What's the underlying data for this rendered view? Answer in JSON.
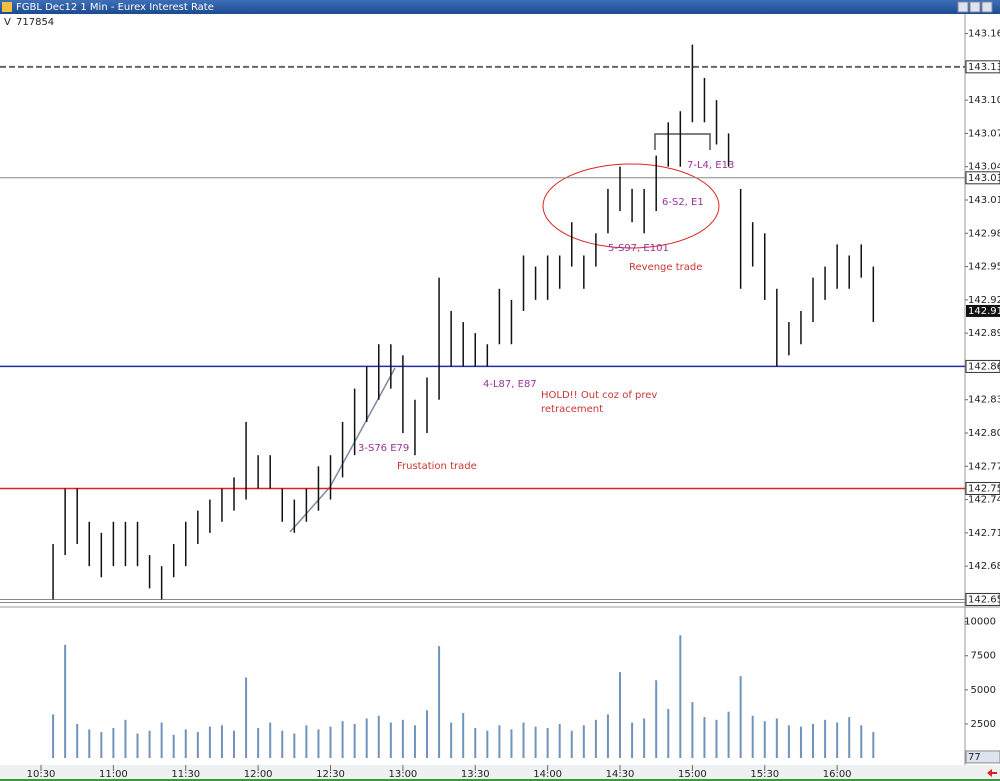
{
  "chart_data": {
    "type": "ohlc",
    "title": "FGBL Dec12 1 Min - Eurex Interest Rate",
    "volume_label": "V",
    "volume_total": 717854,
    "x": [
      "10:35",
      "10:40",
      "10:45",
      "10:50",
      "10:55",
      "11:00",
      "11:05",
      "11:10",
      "11:15",
      "11:20",
      "11:25",
      "11:30",
      "11:35",
      "11:40",
      "11:45",
      "11:50",
      "11:55",
      "12:00",
      "12:05",
      "12:10",
      "12:15",
      "12:20",
      "12:25",
      "12:30",
      "12:35",
      "12:40",
      "12:45",
      "12:50",
      "12:55",
      "13:00",
      "13:05",
      "13:10",
      "13:15",
      "13:20",
      "13:25",
      "13:30",
      "13:35",
      "13:40",
      "13:45",
      "13:50",
      "13:55",
      "14:00",
      "14:05",
      "14:10",
      "14:15",
      "14:20",
      "14:25",
      "14:30",
      "14:35",
      "14:40",
      "14:45",
      "14:50",
      "14:55",
      "15:00",
      "15:05",
      "15:10",
      "15:15",
      "15:20",
      "15:25",
      "15:30",
      "15:35",
      "15:40",
      "15:45",
      "15:50",
      "15:55",
      "16:00",
      "16:05",
      "16:10",
      "16:15"
    ],
    "high": [
      142.7,
      142.75,
      142.75,
      142.72,
      142.71,
      142.72,
      142.72,
      142.72,
      142.69,
      142.68,
      142.7,
      142.72,
      142.73,
      142.74,
      142.75,
      142.76,
      142.81,
      142.78,
      142.78,
      142.75,
      142.74,
      142.75,
      142.77,
      142.78,
      142.81,
      142.84,
      142.86,
      142.88,
      142.88,
      142.87,
      142.83,
      142.85,
      142.94,
      142.91,
      142.9,
      142.89,
      142.88,
      142.93,
      142.92,
      142.96,
      142.95,
      142.96,
      142.96,
      142.99,
      142.96,
      142.98,
      143.02,
      143.04,
      143.02,
      143.02,
      143.05,
      143.08,
      143.09,
      143.15,
      143.12,
      143.1,
      143.07,
      143.02,
      142.99,
      142.98,
      142.93,
      142.9,
      142.91,
      142.94,
      142.95,
      142.97,
      142.96,
      142.97,
      142.95
    ],
    "low": [
      142.65,
      142.69,
      142.7,
      142.68,
      142.67,
      142.68,
      142.68,
      142.68,
      142.66,
      142.65,
      142.67,
      142.68,
      142.7,
      142.71,
      142.72,
      142.73,
      142.74,
      142.75,
      142.75,
      142.72,
      142.71,
      142.72,
      142.73,
      142.74,
      142.76,
      142.78,
      142.81,
      142.83,
      142.84,
      142.8,
      142.78,
      142.8,
      142.83,
      142.86,
      142.86,
      142.86,
      142.86,
      142.88,
      142.88,
      142.91,
      142.92,
      142.92,
      142.93,
      142.95,
      142.93,
      142.95,
      142.98,
      143.0,
      142.99,
      142.98,
      143.0,
      143.04,
      143.04,
      143.08,
      143.08,
      143.06,
      143.04,
      142.93,
      142.95,
      142.92,
      142.86,
      142.87,
      142.88,
      142.9,
      142.92,
      142.93,
      142.93,
      142.94,
      142.9
    ],
    "volume": [
      3200,
      8300,
      2500,
      2100,
      1900,
      2200,
      2800,
      1800,
      2000,
      2600,
      1700,
      2100,
      1900,
      2300,
      2400,
      2000,
      5900,
      2200,
      2600,
      2000,
      1800,
      2400,
      2100,
      2300,
      2700,
      2500,
      2900,
      3100,
      2600,
      2800,
      2400,
      3500,
      8200,
      2600,
      3300,
      2200,
      2000,
      2400,
      2100,
      2600,
      2300,
      2200,
      2500,
      2000,
      2400,
      2800,
      3200,
      6300,
      2600,
      2900,
      5700,
      3600,
      9000,
      4100,
      3000,
      2800,
      3400,
      6000,
      3100,
      2700,
      2900,
      2400,
      2300,
      2500,
      2800,
      2600,
      3000,
      2400,
      1900
    ],
    "xlim": [
      "10:13",
      "16:53"
    ],
    "xticks": [
      "10:30",
      "11:00",
      "11:30",
      "12:00",
      "12:30",
      "13:00",
      "13:30",
      "14:00",
      "14:30",
      "15:00",
      "15:30",
      "16:00"
    ],
    "ylim": [
      142.645,
      143.165
    ],
    "yticks": [
      143.16,
      {
        "value": 143.1,
        "label": "143.10"
      },
      143.07,
      143.04,
      143.01,
      142.98,
      142.95,
      142.92,
      142.89,
      142.83,
      {
        "value": 142.8,
        "label": "142.80"
      },
      142.77,
      142.74,
      142.71,
      142.68
    ],
    "levels": [
      {
        "value": 143.13,
        "color": "#666666",
        "style": "dashed"
      },
      {
        "value": 143.03,
        "color": "#888888",
        "style": "thin"
      },
      {
        "value": 142.86,
        "color": "#1f2fa8",
        "style": "solid"
      },
      {
        "value": 142.75,
        "color": "#e02020",
        "style": "solid"
      },
      {
        "value": 142.65,
        "color": "#888888",
        "style": "double"
      }
    ],
    "current_price": 142.91,
    "volume_ylim": [
      0,
      11000
    ],
    "volume_yticks": [
      2500,
      5000,
      7500,
      10000
    ],
    "current_volume": 77,
    "bar_color": "#111111",
    "volume_color": "#6f93bd",
    "annotations": [
      {
        "text": "3-S76 E79",
        "color": "#993399"
      },
      {
        "text": "Frustation trade",
        "color": "#cc3333"
      },
      {
        "text": "4-L87, E87",
        "color": "#993399"
      },
      {
        "text": "HOLD!! Out coz of prev",
        "color": "#cc3333"
      },
      {
        "text": "retracement",
        "color": "#cc3333"
      },
      {
        "text": "5-S97, E101",
        "color": "#993399"
      },
      {
        "text": "Revenge trade",
        "color": "#cc3333"
      },
      {
        "text": "6-S2, E1",
        "color": "#993399"
      },
      {
        "text": "7-L4, E13",
        "color": "#993399"
      }
    ]
  }
}
